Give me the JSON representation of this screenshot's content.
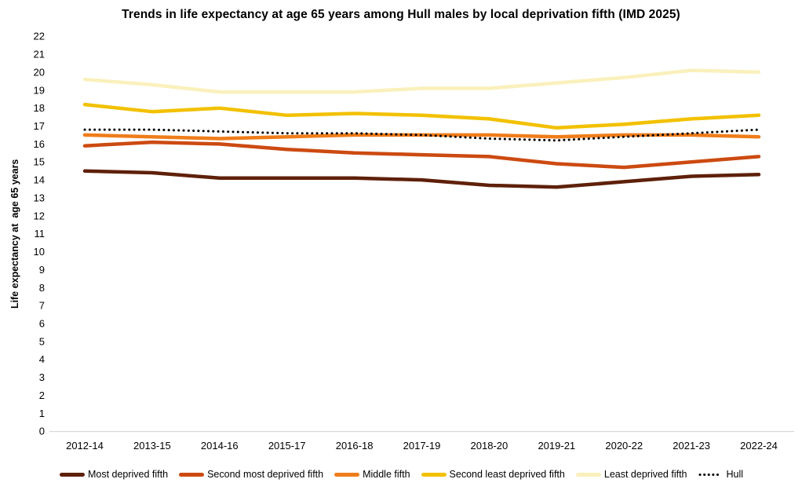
{
  "title": "Trends in life expectancy at  age 65 years among Hull males by local deprivation fifth (IMD 2025)",
  "chart_data": {
    "type": "line",
    "title": "Trends in life expectancy at  age 65 years among Hull males by local deprivation fifth (IMD 2025)",
    "xlabel": "",
    "ylabel": "Life expectancy at  age 65 years",
    "ylim": [
      0,
      22
    ],
    "ytick_step": 1,
    "grid": false,
    "legend_position": "bottom",
    "axis_line_color": "#d9d9d9",
    "categories": [
      "2012-14",
      "2013-15",
      "2014-16",
      "2015-17",
      "2016-18",
      "2017-19",
      "2018-20",
      "2019-21",
      "2020-22",
      "2021-23",
      "2022-24"
    ],
    "series": [
      {
        "name": "Most deprived fifth",
        "color": "#5e2009",
        "style": "solid",
        "values": [
          14.5,
          14.4,
          14.1,
          14.1,
          14.1,
          14.0,
          13.7,
          13.6,
          13.9,
          14.2,
          14.3
        ]
      },
      {
        "name": "Second most deprived fifth",
        "color": "#cc4a11",
        "style": "solid",
        "values": [
          15.9,
          16.1,
          16.0,
          15.7,
          15.5,
          15.4,
          15.3,
          14.9,
          14.7,
          15.0,
          15.3
        ]
      },
      {
        "name": "Middle fifth",
        "color": "#ef7d1a",
        "style": "solid",
        "values": [
          16.5,
          16.4,
          16.3,
          16.4,
          16.5,
          16.5,
          16.5,
          16.4,
          16.5,
          16.5,
          16.4
        ]
      },
      {
        "name": "Second least deprived fifth",
        "color": "#f2c101",
        "style": "solid",
        "values": [
          18.2,
          17.8,
          18.0,
          17.6,
          17.7,
          17.6,
          17.4,
          16.9,
          17.1,
          17.4,
          17.6
        ]
      },
      {
        "name": "Least deprived fifth",
        "color": "#faf0bc",
        "style": "solid",
        "values": [
          19.6,
          19.3,
          18.9,
          18.9,
          18.9,
          19.1,
          19.1,
          19.4,
          19.7,
          20.1,
          20.0
        ]
      },
      {
        "name": "Hull",
        "color": "#000000",
        "style": "dotted",
        "values": [
          16.8,
          16.8,
          16.7,
          16.6,
          16.6,
          16.5,
          16.3,
          16.2,
          16.4,
          16.6,
          16.8
        ]
      }
    ]
  }
}
